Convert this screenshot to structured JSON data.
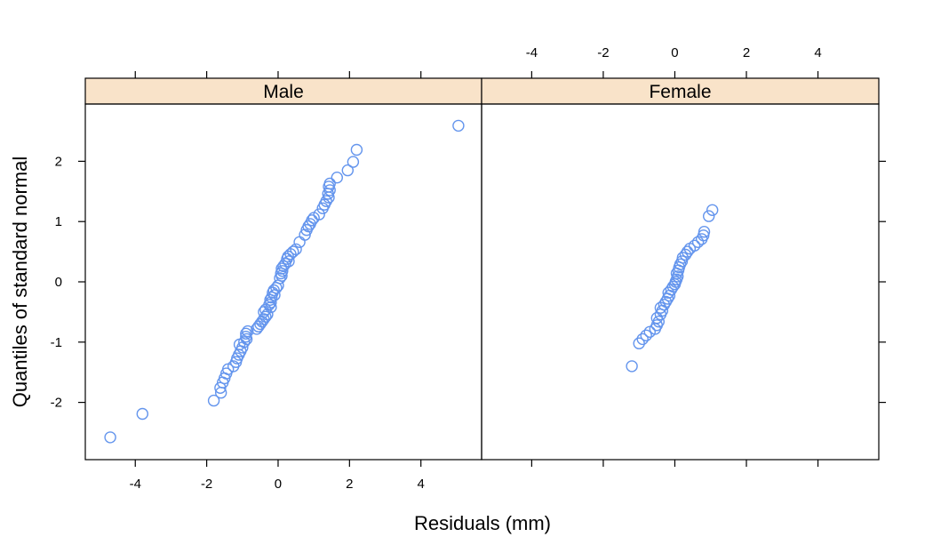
{
  "chart_data": {
    "type": "scatter",
    "xlabel": "Residuals (mm)",
    "ylabel": "Quantiles of standard normal",
    "xlim": [
      -5.4,
      5.7
    ],
    "ylim": [
      -2.95,
      2.95
    ],
    "x_ticks": [
      -4,
      -2,
      0,
      2,
      4
    ],
    "y_ticks": [
      -2,
      -1,
      0,
      1,
      2
    ],
    "grid": false,
    "point_color": "#6495ed",
    "strip_color": "#f9e3c9",
    "panels": [
      {
        "name": "Male",
        "points": [
          [
            -4.7,
            -2.58
          ],
          [
            -3.8,
            -2.19
          ],
          [
            -1.8,
            -1.97
          ],
          [
            -1.6,
            -1.84
          ],
          [
            -1.62,
            -1.76
          ],
          [
            -1.55,
            -1.67
          ],
          [
            -1.5,
            -1.6
          ],
          [
            -1.45,
            -1.52
          ],
          [
            -1.4,
            -1.45
          ],
          [
            -1.25,
            -1.4
          ],
          [
            -1.18,
            -1.33
          ],
          [
            -1.15,
            -1.27
          ],
          [
            -1.1,
            -1.21
          ],
          [
            -1.05,
            -1.15
          ],
          [
            -1.0,
            -1.09
          ],
          [
            -1.08,
            -1.04
          ],
          [
            -0.95,
            -1.0
          ],
          [
            -0.88,
            -0.95
          ],
          [
            -0.9,
            -0.91
          ],
          [
            -0.9,
            -0.86
          ],
          [
            -0.85,
            -0.82
          ],
          [
            -0.6,
            -0.78
          ],
          [
            -0.55,
            -0.74
          ],
          [
            -0.5,
            -0.7
          ],
          [
            -0.45,
            -0.66
          ],
          [
            -0.4,
            -0.62
          ],
          [
            -0.35,
            -0.58
          ],
          [
            -0.3,
            -0.54
          ],
          [
            -0.4,
            -0.5
          ],
          [
            -0.35,
            -0.46
          ],
          [
            -0.2,
            -0.42
          ],
          [
            -0.25,
            -0.38
          ],
          [
            -0.2,
            -0.34
          ],
          [
            -0.22,
            -0.3
          ],
          [
            -0.18,
            -0.26
          ],
          [
            -0.1,
            -0.22
          ],
          [
            -0.15,
            -0.18
          ],
          [
            -0.12,
            -0.14
          ],
          [
            -0.05,
            -0.1
          ],
          [
            0.0,
            -0.06
          ],
          [
            0.05,
            0.06
          ],
          [
            0.1,
            0.1
          ],
          [
            0.08,
            0.14
          ],
          [
            0.12,
            0.18
          ],
          [
            0.1,
            0.22
          ],
          [
            0.15,
            0.26
          ],
          [
            0.2,
            0.3
          ],
          [
            0.3,
            0.34
          ],
          [
            0.25,
            0.38
          ],
          [
            0.28,
            0.42
          ],
          [
            0.35,
            0.46
          ],
          [
            0.42,
            0.5
          ],
          [
            0.5,
            0.54
          ],
          [
            0.6,
            0.66
          ],
          [
            0.75,
            0.78
          ],
          [
            0.8,
            0.86
          ],
          [
            0.85,
            0.92
          ],
          [
            0.9,
            0.96
          ],
          [
            0.95,
            1.02
          ],
          [
            1.0,
            1.06
          ],
          [
            1.15,
            1.12
          ],
          [
            1.25,
            1.22
          ],
          [
            1.3,
            1.28
          ],
          [
            1.35,
            1.34
          ],
          [
            1.42,
            1.4
          ],
          [
            1.4,
            1.46
          ],
          [
            1.45,
            1.52
          ],
          [
            1.42,
            1.58
          ],
          [
            1.45,
            1.63
          ],
          [
            1.65,
            1.73
          ],
          [
            1.95,
            1.85
          ],
          [
            2.1,
            1.99
          ],
          [
            2.2,
            2.19
          ],
          [
            5.05,
            2.59
          ]
        ]
      },
      {
        "name": "Female",
        "points": [
          [
            -1.2,
            -1.4
          ],
          [
            -1.0,
            -1.02
          ],
          [
            -0.9,
            -0.95
          ],
          [
            -0.8,
            -0.89
          ],
          [
            -0.7,
            -0.83
          ],
          [
            -0.55,
            -0.78
          ],
          [
            -0.5,
            -0.72
          ],
          [
            -0.45,
            -0.66
          ],
          [
            -0.5,
            -0.6
          ],
          [
            -0.4,
            -0.54
          ],
          [
            -0.35,
            -0.48
          ],
          [
            -0.4,
            -0.43
          ],
          [
            -0.3,
            -0.38
          ],
          [
            -0.25,
            -0.33
          ],
          [
            -0.2,
            -0.28
          ],
          [
            -0.15,
            -0.23
          ],
          [
            -0.18,
            -0.18
          ],
          [
            -0.1,
            -0.13
          ],
          [
            -0.05,
            -0.08
          ],
          [
            0.0,
            -0.04
          ],
          [
            0.02,
            0.0
          ],
          [
            0.05,
            0.04
          ],
          [
            0.08,
            0.09
          ],
          [
            0.05,
            0.14
          ],
          [
            0.1,
            0.19
          ],
          [
            0.12,
            0.24
          ],
          [
            0.15,
            0.29
          ],
          [
            0.2,
            0.34
          ],
          [
            0.22,
            0.4
          ],
          [
            0.3,
            0.45
          ],
          [
            0.35,
            0.5
          ],
          [
            0.42,
            0.55
          ],
          [
            0.55,
            0.6
          ],
          [
            0.65,
            0.66
          ],
          [
            0.75,
            0.71
          ],
          [
            0.8,
            0.77
          ],
          [
            0.82,
            0.83
          ],
          [
            0.95,
            1.09
          ],
          [
            1.05,
            1.19
          ]
        ]
      }
    ]
  }
}
